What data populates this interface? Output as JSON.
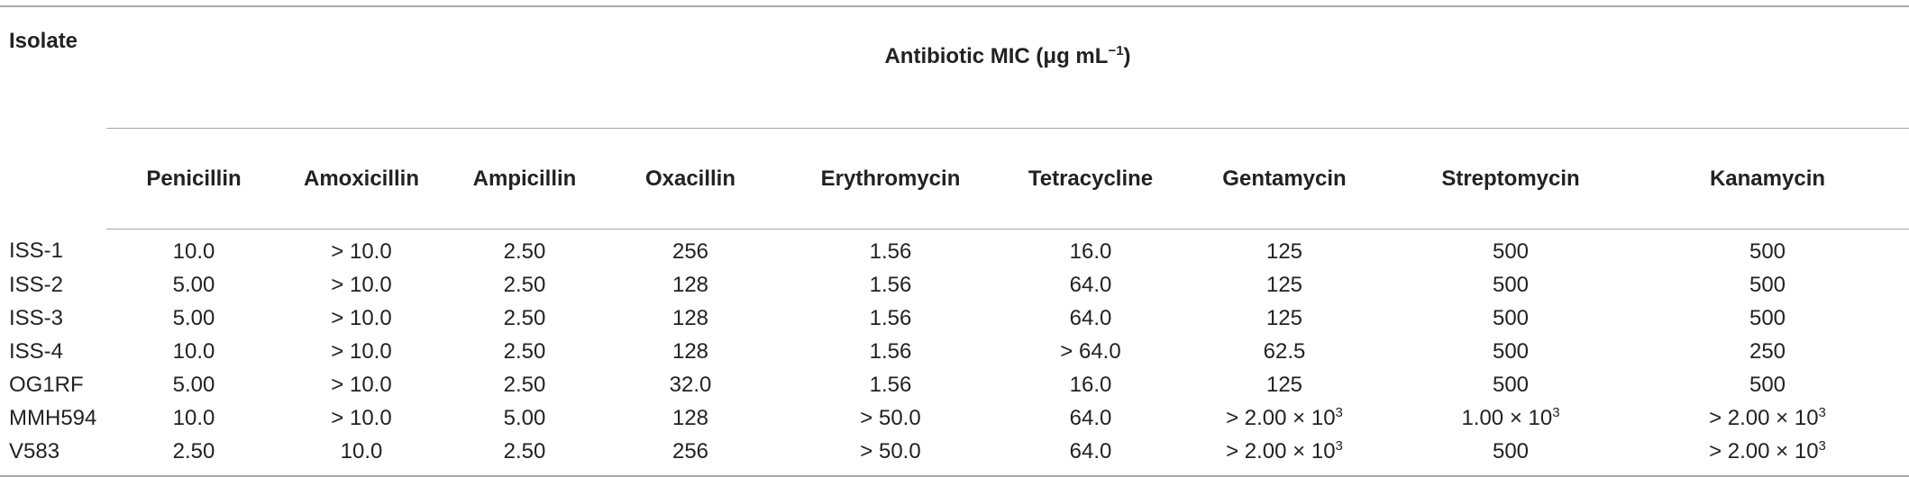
{
  "table": {
    "isolate_header": "Isolate",
    "group_header": "Antibiotic MIC (μg mL",
    "group_header_unit_exp": "−1",
    "group_header_close": ")",
    "columns": [
      "Penicillin",
      "Amoxicillin",
      "Ampicillin",
      "Oxacillin",
      "Erythromycin",
      "Tetracycline",
      "Gentamycin",
      "Streptomycin",
      "Kanamycin"
    ],
    "rows": [
      {
        "isolate": "ISS-1",
        "values": [
          "10.0",
          "> 10.0",
          "2.50",
          "256",
          "1.56",
          "16.0",
          "125",
          "500",
          "500"
        ]
      },
      {
        "isolate": "ISS-2",
        "values": [
          "5.00",
          "> 10.0",
          "2.50",
          "128",
          "1.56",
          "64.0",
          "125",
          "500",
          "500"
        ]
      },
      {
        "isolate": "ISS-3",
        "values": [
          "5.00",
          "> 10.0",
          "2.50",
          "128",
          "1.56",
          "64.0",
          "125",
          "500",
          "500"
        ]
      },
      {
        "isolate": "ISS-4",
        "values": [
          "10.0",
          "> 10.0",
          "2.50",
          "128",
          "1.56",
          "> 64.0",
          "62.5",
          "500",
          "250"
        ]
      },
      {
        "isolate": "OG1RF",
        "values": [
          "5.00",
          "> 10.0",
          "2.50",
          "32.0",
          "1.56",
          "16.0",
          "125",
          "500",
          "500"
        ]
      },
      {
        "isolate": "MMH594",
        "values": [
          "10.0",
          "> 10.0",
          "5.00",
          "128",
          "> 50.0",
          "64.0",
          "> 2.00 × 10",
          "1.00 × 10",
          "> 2.00 × 10"
        ]
      },
      {
        "isolate": "V583",
        "values": [
          "2.50",
          "10.0",
          "2.50",
          "256",
          "> 50.0",
          "64.0",
          "> 2.00 × 10",
          "500",
          "> 2.00 × 10"
        ]
      }
    ],
    "sci_exponent": "3"
  }
}
